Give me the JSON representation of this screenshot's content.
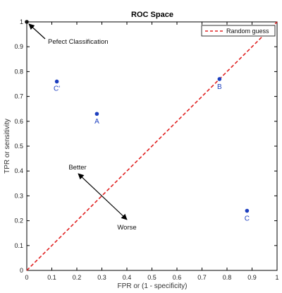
{
  "chart_data": {
    "type": "scatter",
    "title": "ROC Space",
    "xlabel": "FPR or (1 - specificity)",
    "ylabel": "TPR or sensitivity",
    "xlim": [
      0,
      1
    ],
    "ylim": [
      0,
      1
    ],
    "xticks": [
      "0",
      "0.1",
      "0.2",
      "0.3",
      "0.4",
      "0.5",
      "0.6",
      "0.7",
      "0.8",
      "0.9",
      "1"
    ],
    "yticks": [
      "0",
      "0.1",
      "0.2",
      "0.3",
      "0.4",
      "0.5",
      "0.6",
      "0.7",
      "0.8",
      "0.9",
      "1"
    ],
    "grid": false,
    "legend_position": "top-right",
    "points": [
      {
        "label": "",
        "x": 0.0,
        "y": 1.0
      },
      {
        "label": "C'",
        "x": 0.12,
        "y": 0.76
      },
      {
        "label": "A",
        "x": 0.28,
        "y": 0.63
      },
      {
        "label": "B",
        "x": 0.77,
        "y": 0.77
      },
      {
        "label": "C",
        "x": 0.88,
        "y": 0.24
      }
    ],
    "series": [
      {
        "name": "Random guess",
        "x": [
          0,
          1
        ],
        "y": [
          0,
          1
        ],
        "style": "dashed",
        "color": "#e02020"
      }
    ],
    "annotations": [
      {
        "text": "Pefect Classification",
        "x": 0.0,
        "y": 1.0
      },
      {
        "text": "Better",
        "x": 0.2,
        "y": 0.4
      },
      {
        "text": "Worse",
        "x": 0.4,
        "y": 0.2
      }
    ],
    "colors": {
      "points": "#1d3fbf",
      "random_line": "#e02020",
      "axes": "#000000"
    }
  }
}
